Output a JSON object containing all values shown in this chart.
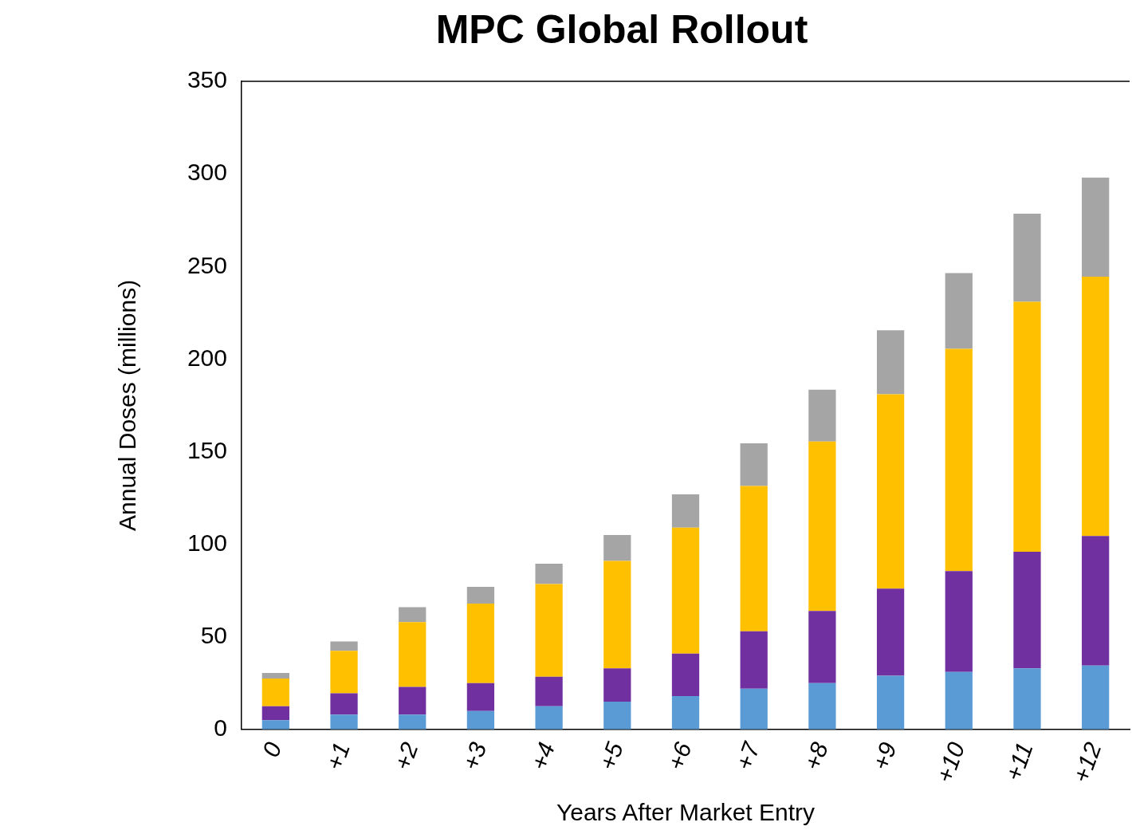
{
  "chart_data": {
    "type": "bar",
    "title": "MPC Global Rollout",
    "xlabel": "Years After Market Entry",
    "ylabel": "Annual Doses (millions)",
    "categories": [
      "0",
      "+1",
      "+2",
      "+3",
      "+4",
      "+5",
      "+6",
      "+7",
      "+8",
      "+9",
      "+10",
      "+11",
      "+12"
    ],
    "stacked": true,
    "legend": false,
    "grid": false,
    "ylim": [
      0,
      350
    ],
    "yticks": [
      0,
      50,
      100,
      150,
      200,
      250,
      300,
      350
    ],
    "series": [
      {
        "color": "#5b9bd5",
        "values": [
          5,
          8,
          8,
          10,
          12.5,
          15,
          18,
          22,
          25,
          29,
          31,
          33,
          34.5
        ]
      },
      {
        "color": "#7030a0",
        "values": [
          7.5,
          11.5,
          15,
          15,
          16,
          18,
          23,
          31,
          39,
          47,
          54.5,
          63,
          70
        ]
      },
      {
        "color": "#ffc000",
        "values": [
          15,
          23,
          35,
          43,
          50,
          58,
          68,
          78.5,
          91.5,
          105,
          120,
          135,
          140
        ]
      },
      {
        "color": "#a5a5a5",
        "values": [
          3,
          5,
          8,
          9,
          11,
          14,
          18,
          23,
          28,
          34.5,
          41,
          47.5,
          53.5
        ]
      }
    ]
  }
}
